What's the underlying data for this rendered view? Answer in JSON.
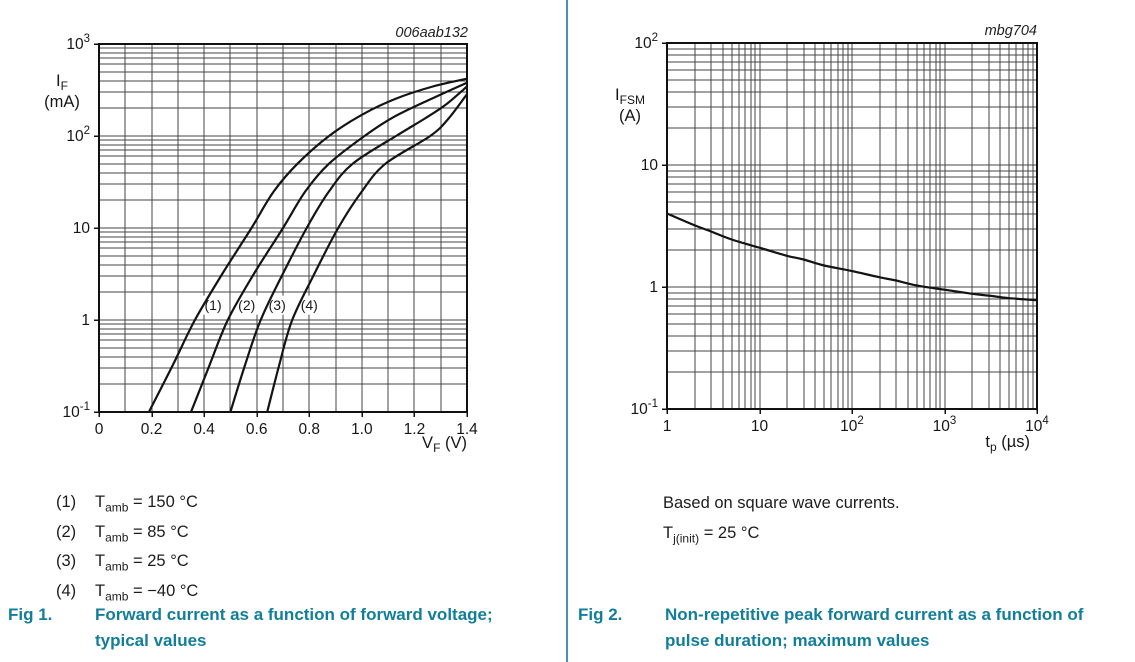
{
  "page": {
    "background": "#ffffff",
    "divider_color": "#4b93a6",
    "caption_color": "#127e9a",
    "text_color": "#1c1c1c",
    "grid_color": "#454545",
    "curve_color": "#141414"
  },
  "fig1": {
    "legend": [
      {
        "num": "(1)",
        "sym": "T",
        "sub": "amb",
        "value": "= 150 °C"
      },
      {
        "num": "(2)",
        "sym": "T",
        "sub": "amb",
        "value": "= 85 °C"
      },
      {
        "num": "(3)",
        "sym": "T",
        "sub": "amb",
        "value": "= 25 °C"
      },
      {
        "num": "(4)",
        "sym": "T",
        "sub": "amb",
        "value": "= −40 °C"
      }
    ],
    "caption_label": "Fig 1.",
    "caption_text": "Forward current as a function of forward voltage; typical values"
  },
  "fig2": {
    "note": "Based on square wave currents.",
    "cond": {
      "sym": "T",
      "sub": "j(init)",
      "value": "= 25 °C"
    },
    "caption_label": "Fig 2.",
    "caption_text": "Non-repetitive peak forward current as a function of pulse duration; maximum values"
  },
  "chart_data": [
    {
      "type": "line",
      "plot_code": "006aab132",
      "x_axis": {
        "scale": "linear",
        "min": 0,
        "max": 1.4,
        "grid_step": 0.1,
        "label": {
          "main": "V",
          "sub": "F",
          "unit": "(V)"
        },
        "ticks": [
          {
            "v": 0,
            "b": "0"
          },
          {
            "v": 0.2,
            "b": "0.2"
          },
          {
            "v": 0.4,
            "b": "0.4"
          },
          {
            "v": 0.6,
            "b": "0.6"
          },
          {
            "v": 0.8,
            "b": "0.8"
          },
          {
            "v": 1.0,
            "b": "1.0"
          },
          {
            "v": 1.2,
            "b": "1.2"
          },
          {
            "v": 1.4,
            "b": "1.4"
          }
        ]
      },
      "y_axis": {
        "scale": "log",
        "min": 0.1,
        "max": 1000,
        "label": {
          "main": "I",
          "sub": "F",
          "unit": "(mA)"
        },
        "ticks": [
          {
            "v": 1000,
            "b": "10",
            "e": "3"
          },
          {
            "v": 100,
            "b": "10",
            "e": "2"
          },
          {
            "v": 10,
            "b": "10"
          },
          {
            "v": 1,
            "b": "1"
          },
          {
            "v": 0.1,
            "b": "10",
            "e": "-1"
          }
        ]
      },
      "series": [
        {
          "name": "(1) Tamb = 150 °C",
          "points": [
            [
              0.19,
              0.1
            ],
            [
              0.28,
              0.32
            ],
            [
              0.365,
              1
            ],
            [
              0.47,
              3.2
            ],
            [
              0.58,
              10
            ],
            [
              0.665,
              25
            ],
            [
              0.755,
              50
            ],
            [
              0.875,
              100
            ],
            [
              1.0,
              170
            ],
            [
              1.13,
              255
            ],
            [
              1.27,
              345
            ],
            [
              1.4,
              420
            ]
          ]
        },
        {
          "name": "(2) Tamb = 85 °C",
          "points": [
            [
              0.35,
              0.1
            ],
            [
              0.42,
              0.32
            ],
            [
              0.49,
              1
            ],
            [
              0.59,
              3.2
            ],
            [
              0.7,
              10
            ],
            [
              0.785,
              25
            ],
            [
              0.875,
              50
            ],
            [
              1.01,
              100
            ],
            [
              1.12,
              160
            ],
            [
              1.26,
              250
            ],
            [
              1.4,
              380
            ]
          ]
        },
        {
          "name": "(3) Tamb = 25 °C",
          "points": [
            [
              0.5,
              0.1
            ],
            [
              0.555,
              0.32
            ],
            [
              0.615,
              1
            ],
            [
              0.7,
              3.2
            ],
            [
              0.79,
              10
            ],
            [
              0.875,
              25
            ],
            [
              0.965,
              50
            ],
            [
              1.13,
              100
            ],
            [
              1.24,
              155
            ],
            [
              1.32,
              220
            ],
            [
              1.4,
              345
            ]
          ]
        },
        {
          "name": "(4) Tamb = −40 °C",
          "points": [
            [
              0.64,
              0.1
            ],
            [
              0.685,
              0.32
            ],
            [
              0.735,
              1
            ],
            [
              0.82,
              3.2
            ],
            [
              0.91,
              10
            ],
            [
              1.0,
              25
            ],
            [
              1.09,
              50
            ],
            [
              1.26,
              100
            ],
            [
              1.33,
              155
            ],
            [
              1.4,
              285
            ]
          ]
        }
      ],
      "curve_labels": [
        {
          "text": "(1)",
          "x": 0.434,
          "y": 1.45
        },
        {
          "text": "(2)",
          "x": 0.562,
          "y": 1.45
        },
        {
          "text": "(3)",
          "x": 0.678,
          "y": 1.45
        },
        {
          "text": "(4)",
          "x": 0.8,
          "y": 1.45
        }
      ]
    },
    {
      "type": "line",
      "plot_code": "mbg704",
      "x_axis": {
        "scale": "log",
        "min": 1,
        "max": 10000,
        "label": {
          "main": "t",
          "sub": "p",
          "unit": "(µs)"
        },
        "ticks": [
          {
            "v": 1,
            "b": "1"
          },
          {
            "v": 10,
            "b": "10"
          },
          {
            "v": 100,
            "b": "10",
            "e": "2"
          },
          {
            "v": 1000,
            "b": "10",
            "e": "3"
          },
          {
            "v": 10000,
            "b": "10",
            "e": "4"
          }
        ]
      },
      "y_axis": {
        "scale": "log",
        "min": 0.1,
        "max": 100,
        "label": {
          "main": "I",
          "sub": "FSM",
          "unit": "(A)"
        },
        "ticks": [
          {
            "v": 100,
            "b": "10",
            "e": "2"
          },
          {
            "v": 10,
            "b": "10"
          },
          {
            "v": 1,
            "b": "1"
          },
          {
            "v": 0.1,
            "b": "10",
            "e": "-1"
          }
        ]
      },
      "series": [
        {
          "name": "IFSM maximum",
          "points": [
            [
              1,
              4.0
            ],
            [
              2,
              3.2
            ],
            [
              3,
              2.85
            ],
            [
              5,
              2.45
            ],
            [
              10,
              2.1
            ],
            [
              20,
              1.8
            ],
            [
              30,
              1.68
            ],
            [
              50,
              1.5
            ],
            [
              100,
              1.35
            ],
            [
              200,
              1.2
            ],
            [
              300,
              1.13
            ],
            [
              500,
              1.03
            ],
            [
              1000,
              0.95
            ],
            [
              2000,
              0.88
            ],
            [
              3000,
              0.85
            ],
            [
              5000,
              0.81
            ],
            [
              10000,
              0.78
            ]
          ]
        }
      ],
      "curve_labels": []
    }
  ]
}
